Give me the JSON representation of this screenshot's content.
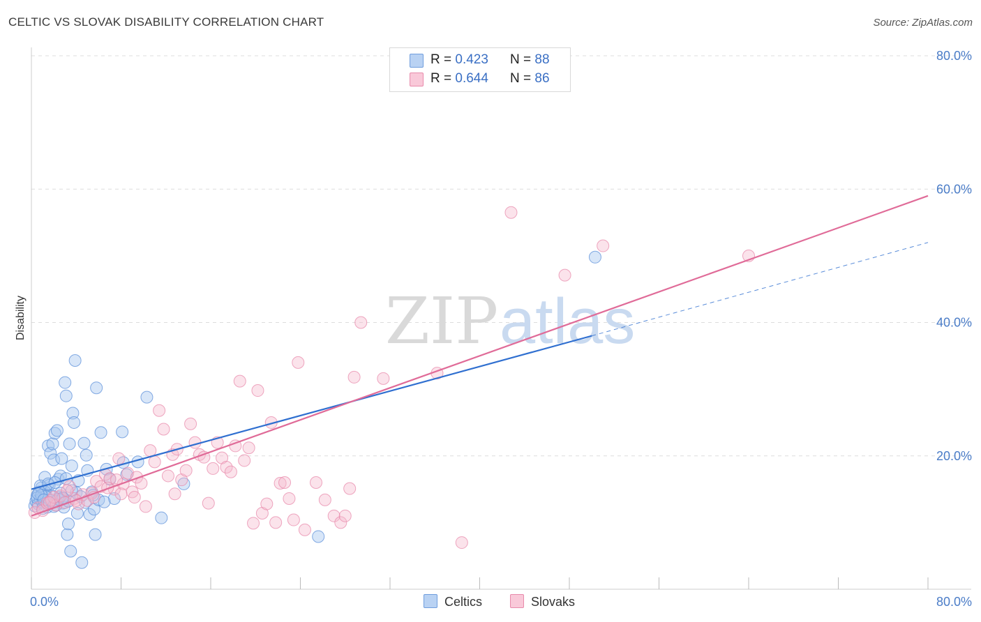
{
  "title": "CELTIC VS SLOVAK DISABILITY CORRELATION CHART",
  "source": "Source: ZipAtlas.com",
  "watermark": {
    "zip": "ZIP",
    "atlas": "atlas"
  },
  "colors": {
    "celtics_fill": "#a9c8f0",
    "celtics_stroke": "#5b8fd9",
    "celtics_line": "#2f6fd0",
    "slovaks_fill": "#f6b8cd",
    "slovaks_stroke": "#e88aab",
    "slovaks_line": "#e06b98",
    "grid": "#dddddd",
    "axis_text": "#4a7cc7"
  },
  "legend": {
    "celtics": {
      "r_label": "R =",
      "r_value": "0.423",
      "n_label": "N =",
      "n_value": "88"
    },
    "slovaks": {
      "r_label": "R =",
      "r_value": "0.644",
      "n_label": "N =",
      "n_value": "86"
    }
  },
  "bottom_legend": [
    "Celtics",
    "Slovaks"
  ],
  "chart_data": {
    "type": "scatter",
    "title": "CELTIC VS SLOVAK DISABILITY CORRELATION CHART",
    "xlabel": "",
    "ylabel": "Disability",
    "xlim": [
      0,
      80
    ],
    "ylim": [
      0,
      80
    ],
    "x_tick_labels": [
      "0.0%",
      "80.0%"
    ],
    "y_ticks": [
      20,
      40,
      60,
      80
    ],
    "y_tick_labels": [
      "20.0%",
      "40.0%",
      "60.0%",
      "80.0%"
    ],
    "grid": "horizontal dashed",
    "legend_placement": "top-center and bottom-center",
    "series": [
      {
        "name": "Celtics",
        "r": 0.423,
        "n": 88,
        "trend": {
          "x0": 0,
          "y0": 15.0,
          "x1": 50,
          "y1": 38.0,
          "dashed_to_x": 80,
          "dashed_to_y": 52.0
        },
        "points": [
          [
            0.3,
            12.5
          ],
          [
            0.4,
            13.2
          ],
          [
            0.5,
            14.0
          ],
          [
            0.6,
            12.8
          ],
          [
            0.7,
            14.6
          ],
          [
            0.8,
            13.5
          ],
          [
            0.9,
            15.2
          ],
          [
            1.0,
            13.0
          ],
          [
            1.1,
            14.2
          ],
          [
            1.2,
            16.8
          ],
          [
            1.3,
            14.9
          ],
          [
            1.4,
            12.3
          ],
          [
            1.5,
            21.5
          ],
          [
            1.6,
            15.6
          ],
          [
            1.7,
            20.4
          ],
          [
            1.8,
            13.1
          ],
          [
            1.9,
            21.8
          ],
          [
            2.0,
            19.4
          ],
          [
            2.1,
            23.4
          ],
          [
            2.2,
            12.6
          ],
          [
            2.3,
            23.8
          ],
          [
            2.4,
            16.5
          ],
          [
            2.5,
            13.8
          ],
          [
            2.6,
            14.4
          ],
          [
            2.7,
            19.6
          ],
          [
            2.8,
            12.9
          ],
          [
            2.9,
            13.6
          ],
          [
            3.0,
            31.0
          ],
          [
            3.1,
            29.0
          ],
          [
            3.2,
            8.2
          ],
          [
            3.3,
            9.8
          ],
          [
            3.4,
            21.8
          ],
          [
            3.5,
            5.7
          ],
          [
            3.6,
            18.5
          ],
          [
            3.7,
            26.4
          ],
          [
            3.8,
            25.0
          ],
          [
            3.9,
            34.3
          ],
          [
            4.0,
            14.5
          ],
          [
            4.1,
            11.4
          ],
          [
            4.2,
            16.3
          ],
          [
            4.5,
            4.0
          ],
          [
            4.7,
            21.9
          ],
          [
            4.9,
            20.1
          ],
          [
            5.0,
            17.8
          ],
          [
            5.2,
            11.2
          ],
          [
            5.4,
            14.6
          ],
          [
            5.6,
            12.0
          ],
          [
            5.7,
            8.2
          ],
          [
            5.8,
            30.2
          ],
          [
            6.0,
            13.4
          ],
          [
            6.2,
            23.5
          ],
          [
            6.7,
            18.0
          ],
          [
            7.0,
            16.5
          ],
          [
            7.4,
            13.6
          ],
          [
            8.1,
            23.6
          ],
          [
            8.2,
            19.0
          ],
          [
            8.5,
            17.2
          ],
          [
            9.5,
            19.1
          ],
          [
            10.3,
            28.8
          ],
          [
            11.6,
            10.7
          ],
          [
            13.6,
            15.8
          ],
          [
            25.6,
            7.9
          ],
          [
            50.3,
            49.8
          ],
          [
            1.2,
            14.6
          ],
          [
            1.8,
            14.0
          ],
          [
            2.2,
            13.2
          ],
          [
            2.6,
            17.0
          ],
          [
            3.1,
            16.6
          ],
          [
            1.0,
            12.1
          ],
          [
            0.8,
            15.5
          ],
          [
            1.5,
            15.8
          ],
          [
            2.9,
            12.3
          ],
          [
            3.3,
            13.2
          ],
          [
            4.4,
            13.9
          ],
          [
            5.5,
            14.1
          ],
          [
            0.5,
            13.7
          ],
          [
            2.0,
            12.4
          ],
          [
            1.3,
            13.9
          ],
          [
            2.4,
            13.5
          ],
          [
            1.7,
            13.3
          ],
          [
            0.9,
            14.1
          ],
          [
            3.6,
            14.8
          ],
          [
            4.8,
            13.0
          ],
          [
            6.5,
            13.1
          ],
          [
            2.1,
            16.0
          ],
          [
            0.6,
            14.3
          ],
          [
            1.1,
            13.4
          ],
          [
            2.8,
            13.7
          ]
        ]
      },
      {
        "name": "Slovaks",
        "r": 0.644,
        "n": 86,
        "trend": {
          "x0": 0,
          "y0": 11.0,
          "x1": 80,
          "y1": 59.0
        },
        "points": [
          [
            0.3,
            11.5
          ],
          [
            0.6,
            12.2
          ],
          [
            1.0,
            11.8
          ],
          [
            1.4,
            12.9
          ],
          [
            1.8,
            13.4
          ],
          [
            2.2,
            12.6
          ],
          [
            2.6,
            14.0
          ],
          [
            3.0,
            13.0
          ],
          [
            3.4,
            15.4
          ],
          [
            3.8,
            13.6
          ],
          [
            4.2,
            12.8
          ],
          [
            4.6,
            14.2
          ],
          [
            5.0,
            13.3
          ],
          [
            5.4,
            14.4
          ],
          [
            5.8,
            16.2
          ],
          [
            6.2,
            15.4
          ],
          [
            6.6,
            17.2
          ],
          [
            7.0,
            16.6
          ],
          [
            7.4,
            15.0
          ],
          [
            7.8,
            19.6
          ],
          [
            8.2,
            15.8
          ],
          [
            8.6,
            17.4
          ],
          [
            9.0,
            14.6
          ],
          [
            9.4,
            16.8
          ],
          [
            9.8,
            15.9
          ],
          [
            10.2,
            12.4
          ],
          [
            10.6,
            20.8
          ],
          [
            11.0,
            19.1
          ],
          [
            11.4,
            26.8
          ],
          [
            11.8,
            24.0
          ],
          [
            12.2,
            17.0
          ],
          [
            12.6,
            20.2
          ],
          [
            13.0,
            21.0
          ],
          [
            13.4,
            16.4
          ],
          [
            13.8,
            17.8
          ],
          [
            14.2,
            24.8
          ],
          [
            14.6,
            22.0
          ],
          [
            15.0,
            20.2
          ],
          [
            15.4,
            19.8
          ],
          [
            15.8,
            12.9
          ],
          [
            16.2,
            18.1
          ],
          [
            16.6,
            22.0
          ],
          [
            17.0,
            19.7
          ],
          [
            17.4,
            18.3
          ],
          [
            17.8,
            17.6
          ],
          [
            18.2,
            21.5
          ],
          [
            18.6,
            31.2
          ],
          [
            19.0,
            19.3
          ],
          [
            19.4,
            21.2
          ],
          [
            19.8,
            9.9
          ],
          [
            20.2,
            29.8
          ],
          [
            20.6,
            11.4
          ],
          [
            21.0,
            12.8
          ],
          [
            21.4,
            25.0
          ],
          [
            21.8,
            10.0
          ],
          [
            22.2,
            15.9
          ],
          [
            22.6,
            16.0
          ],
          [
            23.0,
            13.6
          ],
          [
            23.4,
            10.4
          ],
          [
            23.8,
            34.0
          ],
          [
            24.4,
            8.9
          ],
          [
            25.4,
            16.0
          ],
          [
            26.2,
            13.4
          ],
          [
            27.0,
            11.0
          ],
          [
            27.6,
            10.0
          ],
          [
            28.0,
            11.0
          ],
          [
            28.4,
            15.1
          ],
          [
            28.8,
            31.8
          ],
          [
            29.4,
            40.0
          ],
          [
            31.4,
            31.6
          ],
          [
            36.2,
            32.4
          ],
          [
            38.4,
            7.0
          ],
          [
            42.8,
            56.5
          ],
          [
            47.6,
            47.1
          ],
          [
            51.0,
            51.5
          ],
          [
            64.0,
            50.0
          ],
          [
            8.0,
            14.3
          ],
          [
            5.6,
            13.8
          ],
          [
            2.0,
            13.8
          ],
          [
            4.0,
            13.3
          ],
          [
            6.8,
            15.2
          ],
          [
            9.2,
            13.8
          ],
          [
            3.2,
            14.8
          ],
          [
            1.6,
            13.0
          ],
          [
            12.8,
            14.3
          ],
          [
            7.6,
            16.4
          ]
        ]
      }
    ]
  }
}
